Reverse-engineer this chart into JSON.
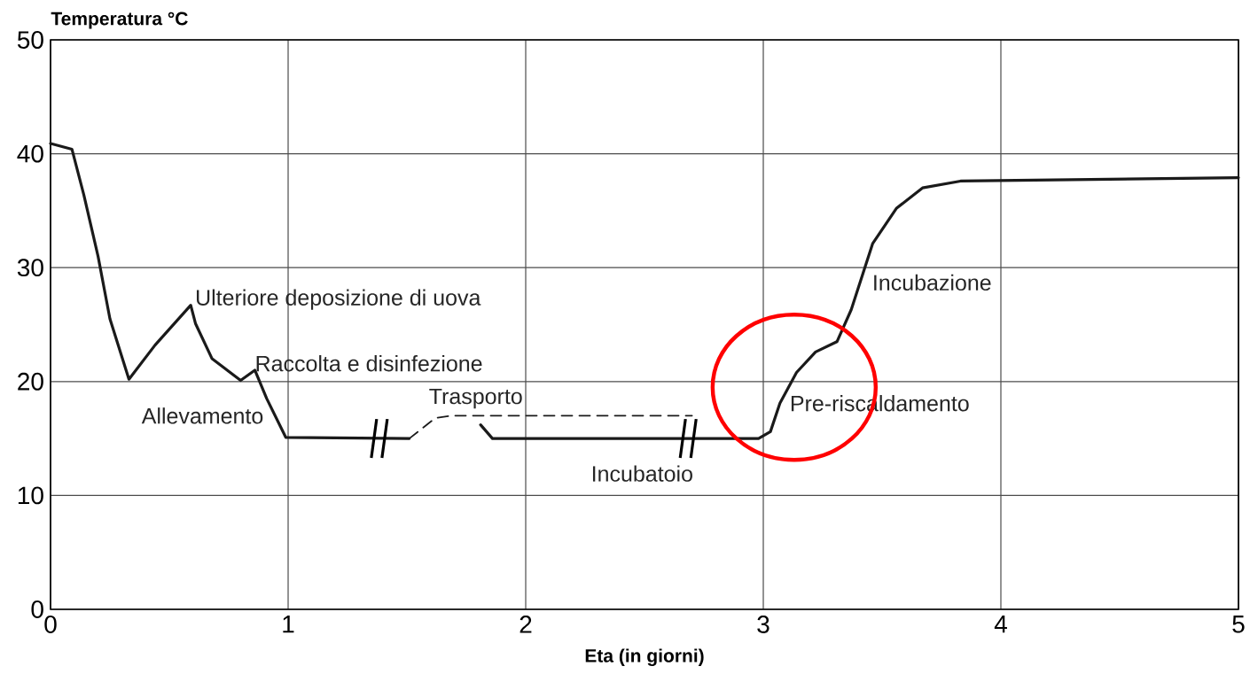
{
  "chart_data": {
    "type": "line",
    "xlabel": "Eta (in giorni)",
    "ylabel": "Temperatura °C",
    "xlim": [
      0,
      5
    ],
    "ylim": [
      0,
      50
    ],
    "xticks": [
      0,
      1,
      2,
      3,
      4,
      5
    ],
    "yticks": [
      0,
      10,
      20,
      30,
      40,
      50
    ],
    "grid": true,
    "marker": "none",
    "series": [
      {
        "color": "#1a1a1a",
        "line_style": "solid",
        "x": [
          0,
          0.09,
          0.14,
          0.2,
          0.25,
          0.33,
          0.44,
          0.59,
          0.61,
          0.68,
          0.8,
          0.86,
          0.91,
          0.99,
          1.51
        ],
        "values": [
          40.9,
          40.4,
          36.4,
          31,
          25.5,
          20.2,
          23.2,
          26.7,
          25.1,
          22,
          20.1,
          21,
          18.5,
          15.1,
          15
        ]
      },
      {
        "color": "#1a1a1a",
        "line_style": "dashed",
        "x": [
          1.51,
          1.62,
          1.69,
          2.7
        ],
        "values": [
          15,
          16.8,
          17,
          17
        ]
      },
      {
        "color": "#1a1a1a",
        "line_style": "solid",
        "x": [
          1.81,
          1.86,
          2.98,
          3.03,
          3.07,
          3.14,
          3.22,
          3.31,
          3.37,
          3.46,
          3.56,
          3.67,
          3.83,
          5
        ],
        "values": [
          16.2,
          15,
          15,
          15.6,
          18.1,
          20.8,
          22.6,
          23.5,
          26.3,
          32.1,
          35.2,
          37,
          37.6,
          37.9
        ]
      }
    ],
    "annotations": [
      "Ulteriore deposizione di uova",
      "Raccolta e disinfezione",
      "Allevamento",
      "Trasporto",
      {
        "text": "Incubatoio",
        "x": 2.49,
        "y": 15
      },
      "Pre-riscaldamento",
      "Incubazione"
    ]
  }
}
